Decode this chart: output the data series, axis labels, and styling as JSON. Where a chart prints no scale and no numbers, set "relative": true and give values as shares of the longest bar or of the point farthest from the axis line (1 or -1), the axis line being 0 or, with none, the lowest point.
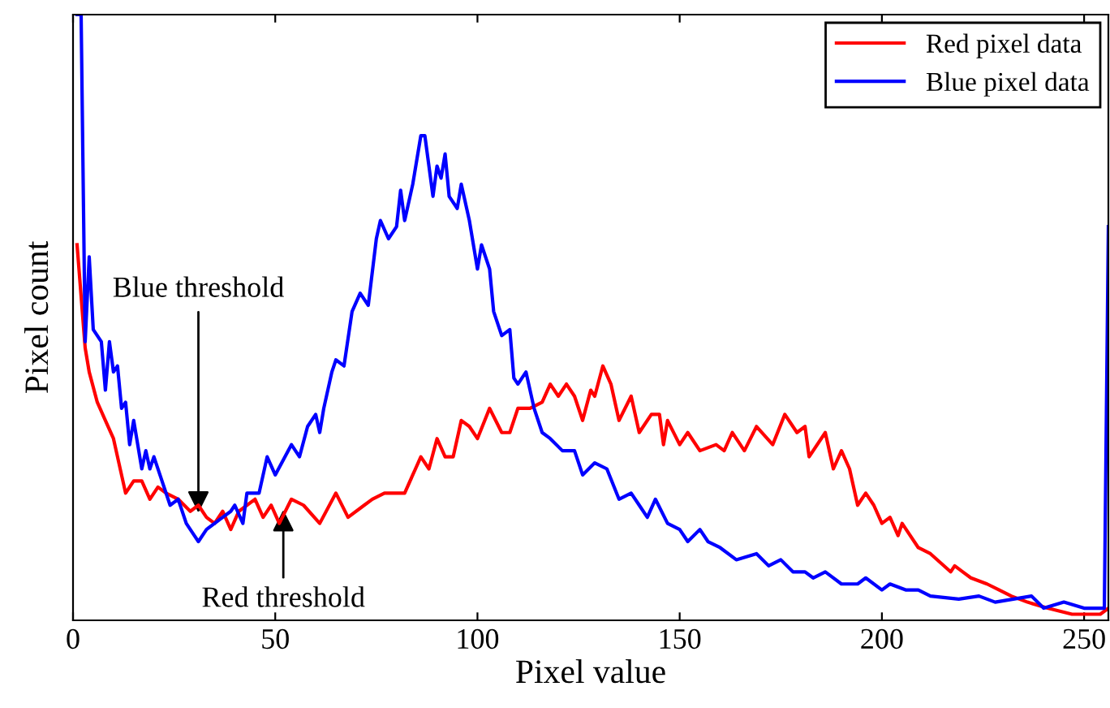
{
  "chart_data": {
    "type": "line",
    "xlabel": "Pixel value",
    "ylabel": "Pixel count",
    "relative": true,
    "xlim": [
      0,
      256
    ],
    "xticks": [
      0,
      50,
      100,
      150,
      200,
      250
    ],
    "tick_labels": "x",
    "legend": "top right",
    "grid": false,
    "line_style": "solid",
    "marker": "none",
    "series": [
      {
        "name": "Red pixel data",
        "color": "#ff0000",
        "x": [
          1,
          3,
          4,
          6,
          8,
          10,
          11,
          13,
          15,
          17,
          19,
          21,
          23,
          26,
          29,
          31,
          33,
          35,
          37,
          39,
          41,
          45,
          47,
          49,
          51,
          54,
          57,
          61,
          65,
          68,
          72,
          74,
          77,
          82,
          84,
          86,
          88,
          90,
          92,
          94,
          96,
          98,
          100,
          103,
          106,
          108,
          110,
          113,
          116,
          118,
          120,
          122,
          124,
          126,
          128,
          129,
          131,
          133,
          135,
          138,
          140,
          143,
          145,
          146,
          147,
          150,
          152,
          155,
          159,
          161,
          163,
          165,
          166,
          169,
          173,
          176,
          179,
          181,
          182,
          186,
          188,
          190,
          192,
          194,
          196,
          198,
          200,
          202,
          204,
          205,
          206,
          209,
          212,
          217,
          218,
          220,
          222,
          226,
          229,
          232,
          236,
          241,
          247,
          254,
          256
        ],
        "values": [
          0.62,
          0.45,
          0.41,
          0.36,
          0.33,
          0.3,
          0.27,
          0.21,
          0.23,
          0.23,
          0.2,
          0.22,
          0.21,
          0.2,
          0.18,
          0.19,
          0.17,
          0.16,
          0.18,
          0.15,
          0.18,
          0.2,
          0.17,
          0.19,
          0.16,
          0.2,
          0.19,
          0.16,
          0.21,
          0.17,
          0.19,
          0.2,
          0.21,
          0.21,
          0.24,
          0.27,
          0.25,
          0.3,
          0.27,
          0.27,
          0.33,
          0.32,
          0.3,
          0.35,
          0.31,
          0.31,
          0.35,
          0.35,
          0.36,
          0.39,
          0.37,
          0.39,
          0.37,
          0.33,
          0.38,
          0.37,
          0.42,
          0.39,
          0.33,
          0.37,
          0.31,
          0.34,
          0.34,
          0.29,
          0.33,
          0.29,
          0.31,
          0.28,
          0.29,
          0.28,
          0.31,
          0.29,
          0.28,
          0.32,
          0.29,
          0.34,
          0.31,
          0.32,
          0.27,
          0.31,
          0.25,
          0.28,
          0.25,
          0.19,
          0.21,
          0.19,
          0.16,
          0.17,
          0.14,
          0.16,
          0.15,
          0.12,
          0.11,
          0.08,
          0.09,
          0.08,
          0.07,
          0.06,
          0.05,
          0.04,
          0.03,
          0.02,
          0.01,
          0.01,
          0.02
        ]
      },
      {
        "name": "Blue pixel data",
        "color": "#0000ff",
        "x": [
          1,
          2,
          3,
          4,
          5,
          7,
          8,
          9,
          10,
          11,
          12,
          13,
          14,
          15,
          17,
          18,
          19,
          20,
          22,
          24,
          26,
          28,
          30,
          31,
          33,
          35,
          37,
          39,
          40,
          42,
          43,
          46,
          48,
          50,
          54,
          56,
          58,
          60,
          61,
          62,
          64,
          65,
          67,
          69,
          71,
          73,
          75,
          76,
          78,
          80,
          81,
          82,
          84,
          86,
          87,
          89,
          90,
          91,
          92,
          93,
          95,
          96,
          98,
          100,
          101,
          103,
          104,
          106,
          108,
          109,
          110,
          112,
          114,
          116,
          118,
          121,
          124,
          126,
          129,
          132,
          135,
          138,
          140,
          142,
          144,
          147,
          150,
          152,
          155,
          157,
          160,
          164,
          169,
          172,
          175,
          178,
          181,
          183,
          186,
          190,
          194,
          196,
          200,
          202,
          206,
          209,
          212,
          219,
          224,
          228,
          237,
          240,
          245,
          250,
          255,
          256
        ],
        "values": [
          1,
          1,
          0.46,
          0.6,
          0.48,
          0.46,
          0.38,
          0.46,
          0.41,
          0.42,
          0.35,
          0.36,
          0.29,
          0.33,
          0.25,
          0.28,
          0.25,
          0.27,
          0.23,
          0.19,
          0.2,
          0.16,
          0.14,
          0.13,
          0.15,
          0.16,
          0.17,
          0.18,
          0.19,
          0.16,
          0.21,
          0.21,
          0.27,
          0.24,
          0.29,
          0.27,
          0.32,
          0.34,
          0.31,
          0.35,
          0.41,
          0.43,
          0.42,
          0.51,
          0.54,
          0.52,
          0.63,
          0.66,
          0.63,
          0.65,
          0.71,
          0.66,
          0.72,
          0.8,
          0.8,
          0.7,
          0.75,
          0.73,
          0.77,
          0.7,
          0.68,
          0.72,
          0.66,
          0.58,
          0.62,
          0.58,
          0.51,
          0.47,
          0.48,
          0.4,
          0.39,
          0.41,
          0.35,
          0.31,
          0.3,
          0.28,
          0.28,
          0.24,
          0.26,
          0.25,
          0.2,
          0.21,
          0.19,
          0.17,
          0.2,
          0.16,
          0.15,
          0.13,
          0.15,
          0.13,
          0.12,
          0.1,
          0.11,
          0.09,
          0.1,
          0.08,
          0.08,
          0.07,
          0.08,
          0.06,
          0.06,
          0.07,
          0.05,
          0.06,
          0.05,
          0.05,
          0.04,
          0.035,
          0.04,
          0.03,
          0.04,
          0.02,
          0.03,
          0.02,
          0.02,
          0.65
        ]
      }
    ],
    "annotations": [
      {
        "text": "Blue threshold",
        "x": 31,
        "y": 0.17
      },
      {
        "text": "Red threshold",
        "x": 52,
        "y": 0.19
      }
    ]
  }
}
